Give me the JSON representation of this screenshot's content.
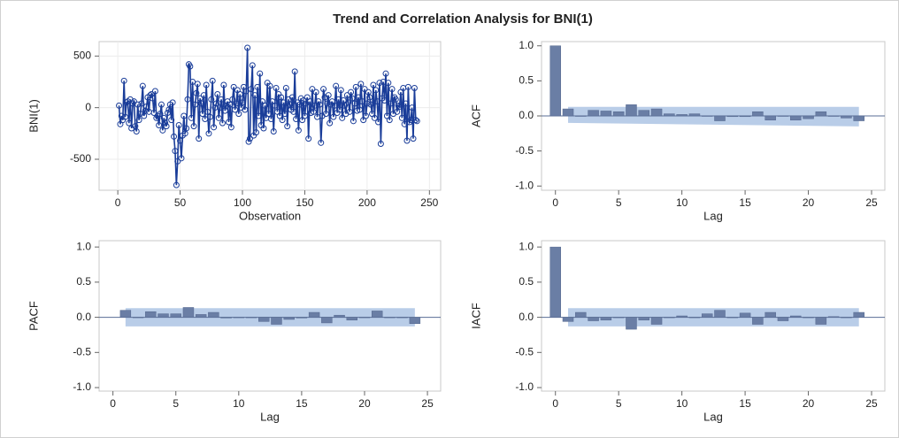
{
  "title": "Trend and Correlation Analysis for BNI(1)",
  "chart_data": [
    {
      "type": "line",
      "x_label": "Observation",
      "y_label": "BNI(1)",
      "xlim": [
        -15,
        259
      ],
      "ylim": [
        -800,
        640
      ],
      "xticks": [
        0,
        50,
        100,
        150,
        200,
        250
      ],
      "yticks": [
        -500,
        0,
        500
      ],
      "grid": true,
      "x": [
        1,
        2,
        3,
        4,
        5,
        6,
        7,
        8,
        9,
        10,
        11,
        12,
        13,
        14,
        15,
        16,
        17,
        18,
        19,
        20,
        21,
        22,
        23,
        24,
        25,
        26,
        27,
        28,
        29,
        30,
        31,
        32,
        33,
        34,
        35,
        36,
        37,
        38,
        39,
        40,
        41,
        42,
        43,
        44,
        45,
        46,
        47,
        48,
        49,
        50,
        51,
        52,
        53,
        54,
        55,
        56,
        57,
        58,
        59,
        60,
        61,
        62,
        63,
        64,
        65,
        66,
        67,
        68,
        69,
        70,
        71,
        72,
        73,
        74,
        75,
        76,
        77,
        78,
        79,
        80,
        81,
        82,
        83,
        84,
        85,
        86,
        87,
        88,
        89,
        90,
        91,
        92,
        93,
        94,
        95,
        96,
        97,
        98,
        99,
        100,
        101,
        102,
        103,
        104,
        105,
        106,
        107,
        108,
        109,
        110,
        111,
        112,
        113,
        114,
        115,
        116,
        117,
        118,
        119,
        120,
        121,
        122,
        123,
        124,
        125,
        126,
        127,
        128,
        129,
        130,
        131,
        132,
        133,
        134,
        135,
        136,
        137,
        138,
        139,
        140,
        141,
        142,
        143,
        144,
        145,
        146,
        147,
        148,
        149,
        150,
        151,
        152,
        153,
        154,
        155,
        156,
        157,
        158,
        159,
        160,
        161,
        162,
        163,
        164,
        165,
        166,
        167,
        168,
        169,
        170,
        171,
        172,
        173,
        174,
        175,
        176,
        177,
        178,
        179,
        180,
        181,
        182,
        183,
        184,
        185,
        186,
        187,
        188,
        189,
        190,
        191,
        192,
        193,
        194,
        195,
        196,
        197,
        198,
        199,
        200,
        201,
        202,
        203,
        204,
        205,
        206,
        207,
        208,
        209,
        210,
        211,
        212,
        213,
        214,
        215,
        216,
        217,
        218,
        219,
        220,
        221,
        222,
        223,
        224,
        225,
        226,
        227,
        228,
        229,
        230,
        231,
        232,
        233,
        234,
        235,
        236,
        237,
        238,
        239,
        240
      ],
      "series": [
        {
          "color": "#1a3d99",
          "values": [
            20,
            -160,
            -80,
            -120,
            260,
            -90,
            50,
            60,
            -150,
            80,
            -200,
            40,
            60,
            -180,
            -230,
            30,
            -120,
            -60,
            40,
            210,
            -80,
            -30,
            10,
            100,
            -40,
            120,
            130,
            90,
            -50,
            160,
            -100,
            -80,
            -170,
            -60,
            30,
            -220,
            -100,
            -150,
            -180,
            -50,
            -20,
            30,
            -120,
            50,
            -280,
            -420,
            -750,
            -520,
            -170,
            -320,
            -490,
            -270,
            -80,
            -250,
            -200,
            80,
            420,
            400,
            -100,
            250,
            -180,
            30,
            140,
            230,
            -300,
            90,
            40,
            -60,
            120,
            -110,
            220,
            -40,
            -250,
            -90,
            80,
            260,
            -190,
            0,
            40,
            130,
            -100,
            0,
            80,
            -150,
            220,
            -30,
            20,
            60,
            -140,
            30,
            -190,
            80,
            200,
            -20,
            40,
            170,
            -60,
            130,
            0,
            50,
            200,
            -20,
            160,
            580,
            -330,
            -300,
            180,
            410,
            -270,
            120,
            -240,
            200,
            -80,
            330,
            -170,
            60,
            -200,
            20,
            -100,
            240,
            -60,
            210,
            -110,
            60,
            -230,
            20,
            190,
            -40,
            130,
            -80,
            100,
            -120,
            50,
            -60,
            190,
            -180,
            80,
            30,
            -20,
            100,
            -40,
            350,
            -110,
            50,
            -220,
            30,
            90,
            -120,
            70,
            -80,
            40,
            100,
            -300,
            60,
            -50,
            180,
            -40,
            20,
            150,
            -90,
            60,
            30,
            -340,
            -80,
            180,
            100,
            -60,
            40,
            120,
            -150,
            30,
            60,
            -90,
            20,
            210,
            -50,
            80,
            -20,
            170,
            -100,
            70,
            20,
            -60,
            120,
            50,
            -40,
            150,
            90,
            -130,
            40,
            200,
            -30,
            100,
            -20,
            230,
            60,
            -120,
            180,
            -80,
            40,
            150,
            100,
            30,
            -60,
            220,
            -100,
            170,
            60,
            -140,
            240,
            -350,
            90,
            250,
            70,
            330,
            -80,
            240,
            -120,
            40,
            180,
            -60,
            100,
            80,
            -40,
            20,
            10,
            150,
            -100,
            190,
            -160,
            40,
            -320,
            200,
            -140,
            -120,
            0,
            -300,
            190,
            -120,
            -130
          ]
        }
      ]
    },
    {
      "type": "bar",
      "x_label": "Lag",
      "y_label": "ACF",
      "xlim": [
        -1.1,
        26.05
      ],
      "ylim": [
        -1.06,
        1.06
      ],
      "xticks": [
        0,
        5,
        10,
        15,
        20,
        25
      ],
      "yticks": [
        {
          "value": -1,
          "label": "-1.0"
        },
        {
          "value": -0.5,
          "label": "-0.5"
        },
        {
          "value": 0,
          "label": "0.0"
        },
        {
          "value": 0.5,
          "label": "0.5"
        },
        {
          "value": 1,
          "label": "1.0"
        }
      ],
      "grid": false,
      "reference_line": 0,
      "band": {
        "x": [
          1,
          24
        ],
        "upper": [
          0.13,
          0.13
        ],
        "lower": [
          -0.1,
          -0.15
        ],
        "color": "#b9cde8"
      },
      "x": [
        0,
        1,
        2,
        3,
        4,
        5,
        6,
        7,
        8,
        9,
        10,
        11,
        12,
        13,
        14,
        15,
        16,
        17,
        18,
        19,
        20,
        21,
        22,
        23,
        24
      ],
      "series": [
        {
          "color": "#6a7ea5",
          "values": [
            1.0,
            0.1,
            0.0,
            0.08,
            0.07,
            0.06,
            0.16,
            0.08,
            0.1,
            0.03,
            0.02,
            0.03,
            0.0,
            -0.07,
            -0.01,
            -0.01,
            0.06,
            -0.06,
            0.0,
            -0.06,
            -0.04,
            0.06,
            0.0,
            -0.03,
            -0.07
          ]
        }
      ]
    },
    {
      "type": "bar",
      "x_label": "Lag",
      "y_label": "PACF",
      "xlim": [
        -1.1,
        26.05
      ],
      "ylim": [
        -1.05,
        1.09
      ],
      "xticks": [
        0,
        5,
        10,
        15,
        20,
        25
      ],
      "yticks": [
        {
          "value": -1,
          "label": "-1.0"
        },
        {
          "value": -0.5,
          "label": "-0.5"
        },
        {
          "value": 0,
          "label": "0.0"
        },
        {
          "value": 0.5,
          "label": "0.5"
        },
        {
          "value": 1,
          "label": "1.0"
        }
      ],
      "grid": false,
      "reference_line": 0,
      "band": {
        "x": [
          1,
          24
        ],
        "upper": [
          0.13,
          0.13
        ],
        "lower": [
          -0.13,
          -0.13
        ],
        "color": "#b9cde8"
      },
      "x": [
        1,
        2,
        3,
        4,
        5,
        6,
        7,
        8,
        9,
        10,
        11,
        12,
        13,
        14,
        15,
        16,
        17,
        18,
        19,
        20,
        21,
        22,
        23,
        24
      ],
      "series": [
        {
          "color": "#6a7ea5",
          "values": [
            0.1,
            0.0,
            0.08,
            0.05,
            0.05,
            0.14,
            0.04,
            0.07,
            -0.01,
            0.0,
            0.0,
            -0.06,
            -0.1,
            -0.03,
            -0.01,
            0.07,
            -0.08,
            0.03,
            -0.04,
            0.0,
            0.09,
            0.0,
            0.0,
            -0.09
          ]
        }
      ]
    },
    {
      "type": "bar",
      "x_label": "Lag",
      "y_label": "IACF",
      "xlim": [
        -1.1,
        26.05
      ],
      "ylim": [
        -1.05,
        1.09
      ],
      "xticks": [
        0,
        5,
        10,
        15,
        20,
        25
      ],
      "yticks": [
        {
          "value": -1,
          "label": "-1.0"
        },
        {
          "value": -0.5,
          "label": "-0.5"
        },
        {
          "value": 0,
          "label": "0.0"
        },
        {
          "value": 0.5,
          "label": "0.5"
        },
        {
          "value": 1,
          "label": "1.0"
        }
      ],
      "grid": false,
      "reference_line": 0,
      "band": {
        "x": [
          1,
          24
        ],
        "upper": [
          0.13,
          0.13
        ],
        "lower": [
          -0.13,
          -0.13
        ],
        "color": "#b9cde8"
      },
      "x": [
        0,
        1,
        2,
        3,
        4,
        5,
        6,
        7,
        8,
        9,
        10,
        11,
        12,
        13,
        14,
        15,
        16,
        17,
        18,
        19,
        20,
        21,
        22,
        23,
        24
      ],
      "series": [
        {
          "color": "#6a7ea5",
          "values": [
            1.0,
            -0.06,
            0.07,
            -0.05,
            -0.04,
            0.0,
            -0.17,
            -0.04,
            -0.1,
            0.0,
            0.02,
            0.0,
            0.05,
            0.1,
            0.0,
            0.06,
            -0.1,
            0.07,
            -0.05,
            0.02,
            0.0,
            -0.1,
            0.01,
            0.0,
            0.07
          ]
        }
      ]
    }
  ]
}
